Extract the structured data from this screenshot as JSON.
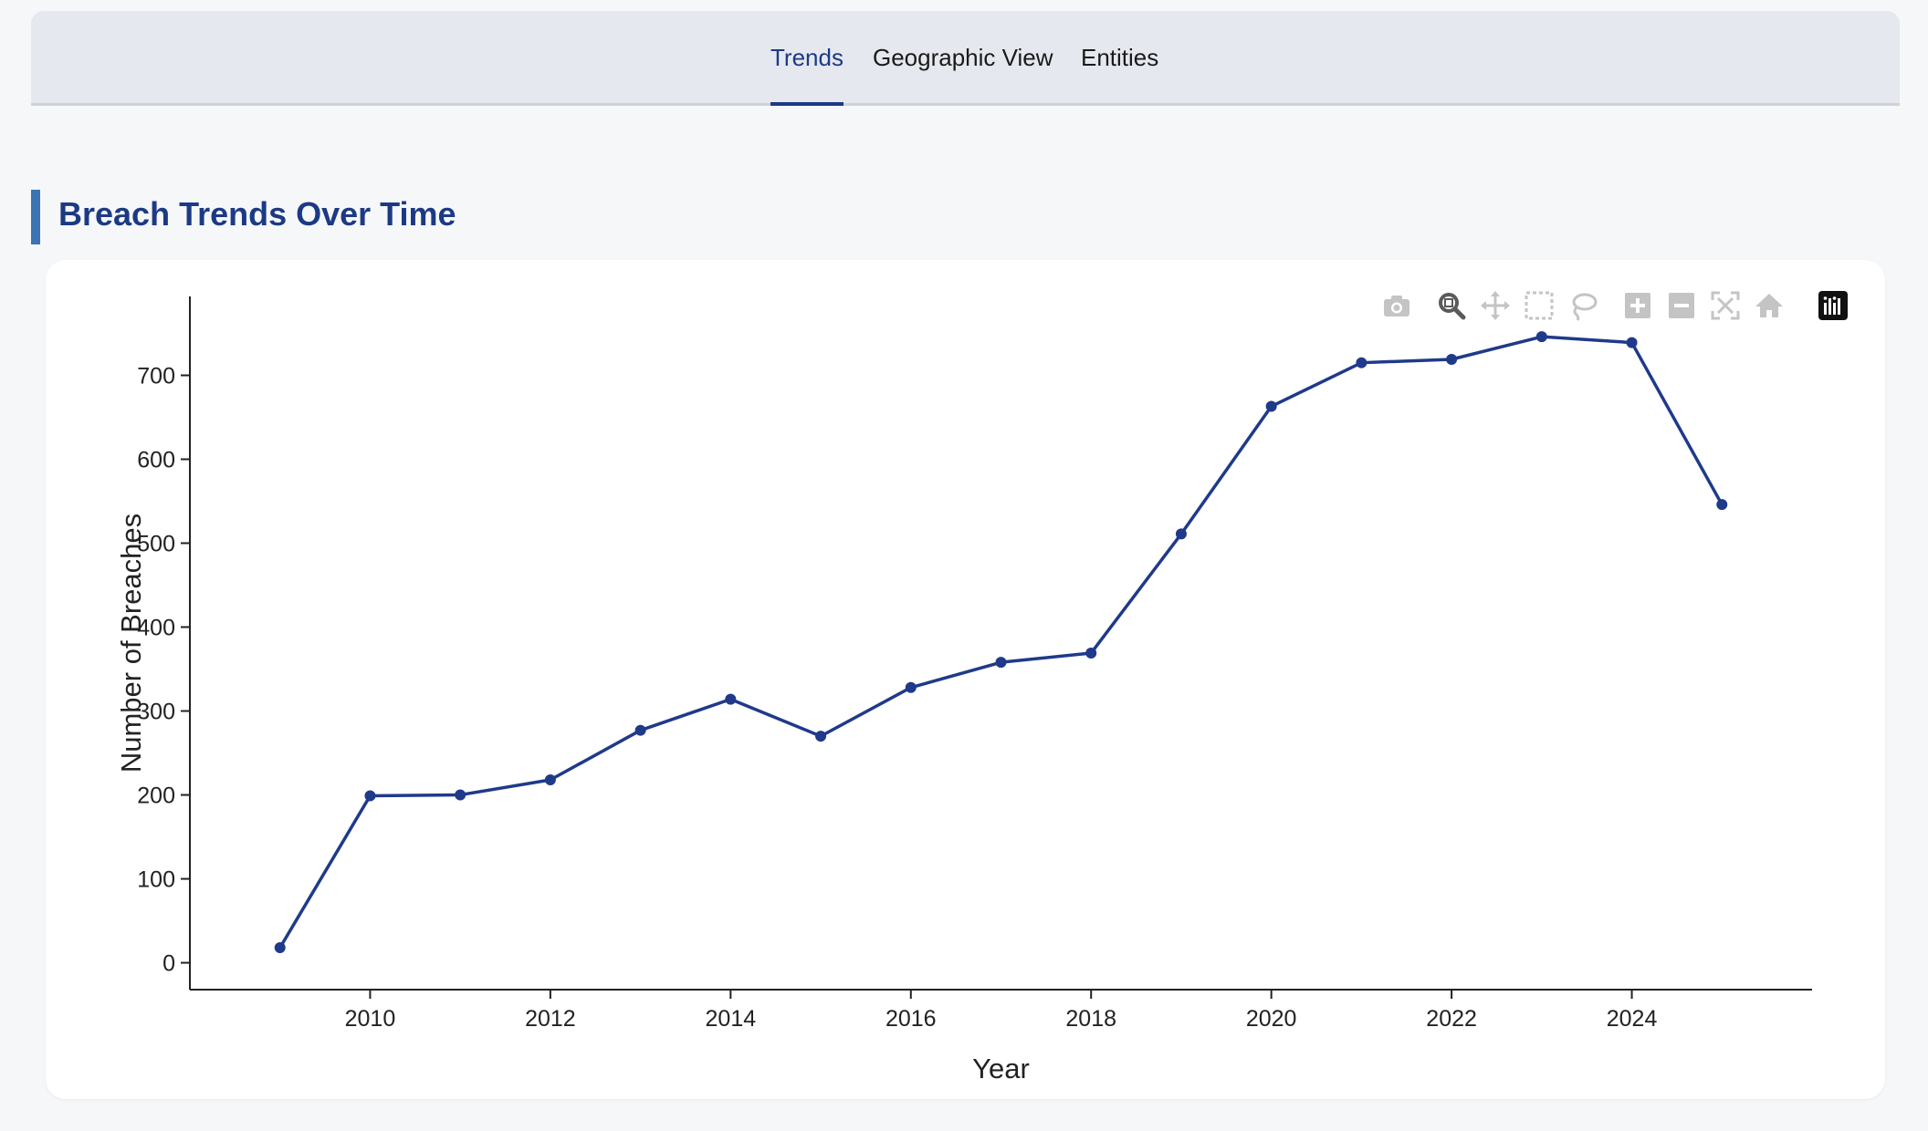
{
  "tabs": [
    {
      "label": "Trends",
      "active": true
    },
    {
      "label": "Geographic View",
      "active": false
    },
    {
      "label": "Entities",
      "active": false
    }
  ],
  "section": {
    "title": "Breach Trends Over Time"
  },
  "colors": {
    "accent": "#1c3a84",
    "line": "#1f3a8a",
    "section_bar": "#3b73b5"
  },
  "modebar": [
    "camera-icon",
    "zoom-icon",
    "pan-icon",
    "box-select-icon",
    "lasso-select-icon",
    "zoom-in-icon",
    "zoom-out-icon",
    "autoscale-icon",
    "reset-axes-icon",
    "plotly-logo-icon"
  ],
  "chart_data": {
    "type": "line",
    "x": [
      2009,
      2010,
      2011,
      2012,
      2013,
      2014,
      2015,
      2016,
      2017,
      2018,
      2019,
      2020,
      2021,
      2022,
      2023,
      2024,
      2025
    ],
    "series": [
      {
        "values": [
          18,
          199,
          200,
          218,
          277,
          314,
          270,
          328,
          358,
          369,
          511,
          663,
          715,
          719,
          746,
          739,
          546
        ]
      }
    ],
    "xlabel": "Year",
    "ylabel": "Number of Breaches",
    "xticks": [
      2010,
      2012,
      2014,
      2016,
      2018,
      2020,
      2022,
      2024
    ],
    "yticks": [
      0,
      100,
      200,
      300,
      400,
      500,
      600,
      700
    ],
    "xlim": [
      2008.0,
      2026.0
    ],
    "ylim": [
      -32,
      794
    ],
    "grid": false,
    "legend": "none"
  }
}
